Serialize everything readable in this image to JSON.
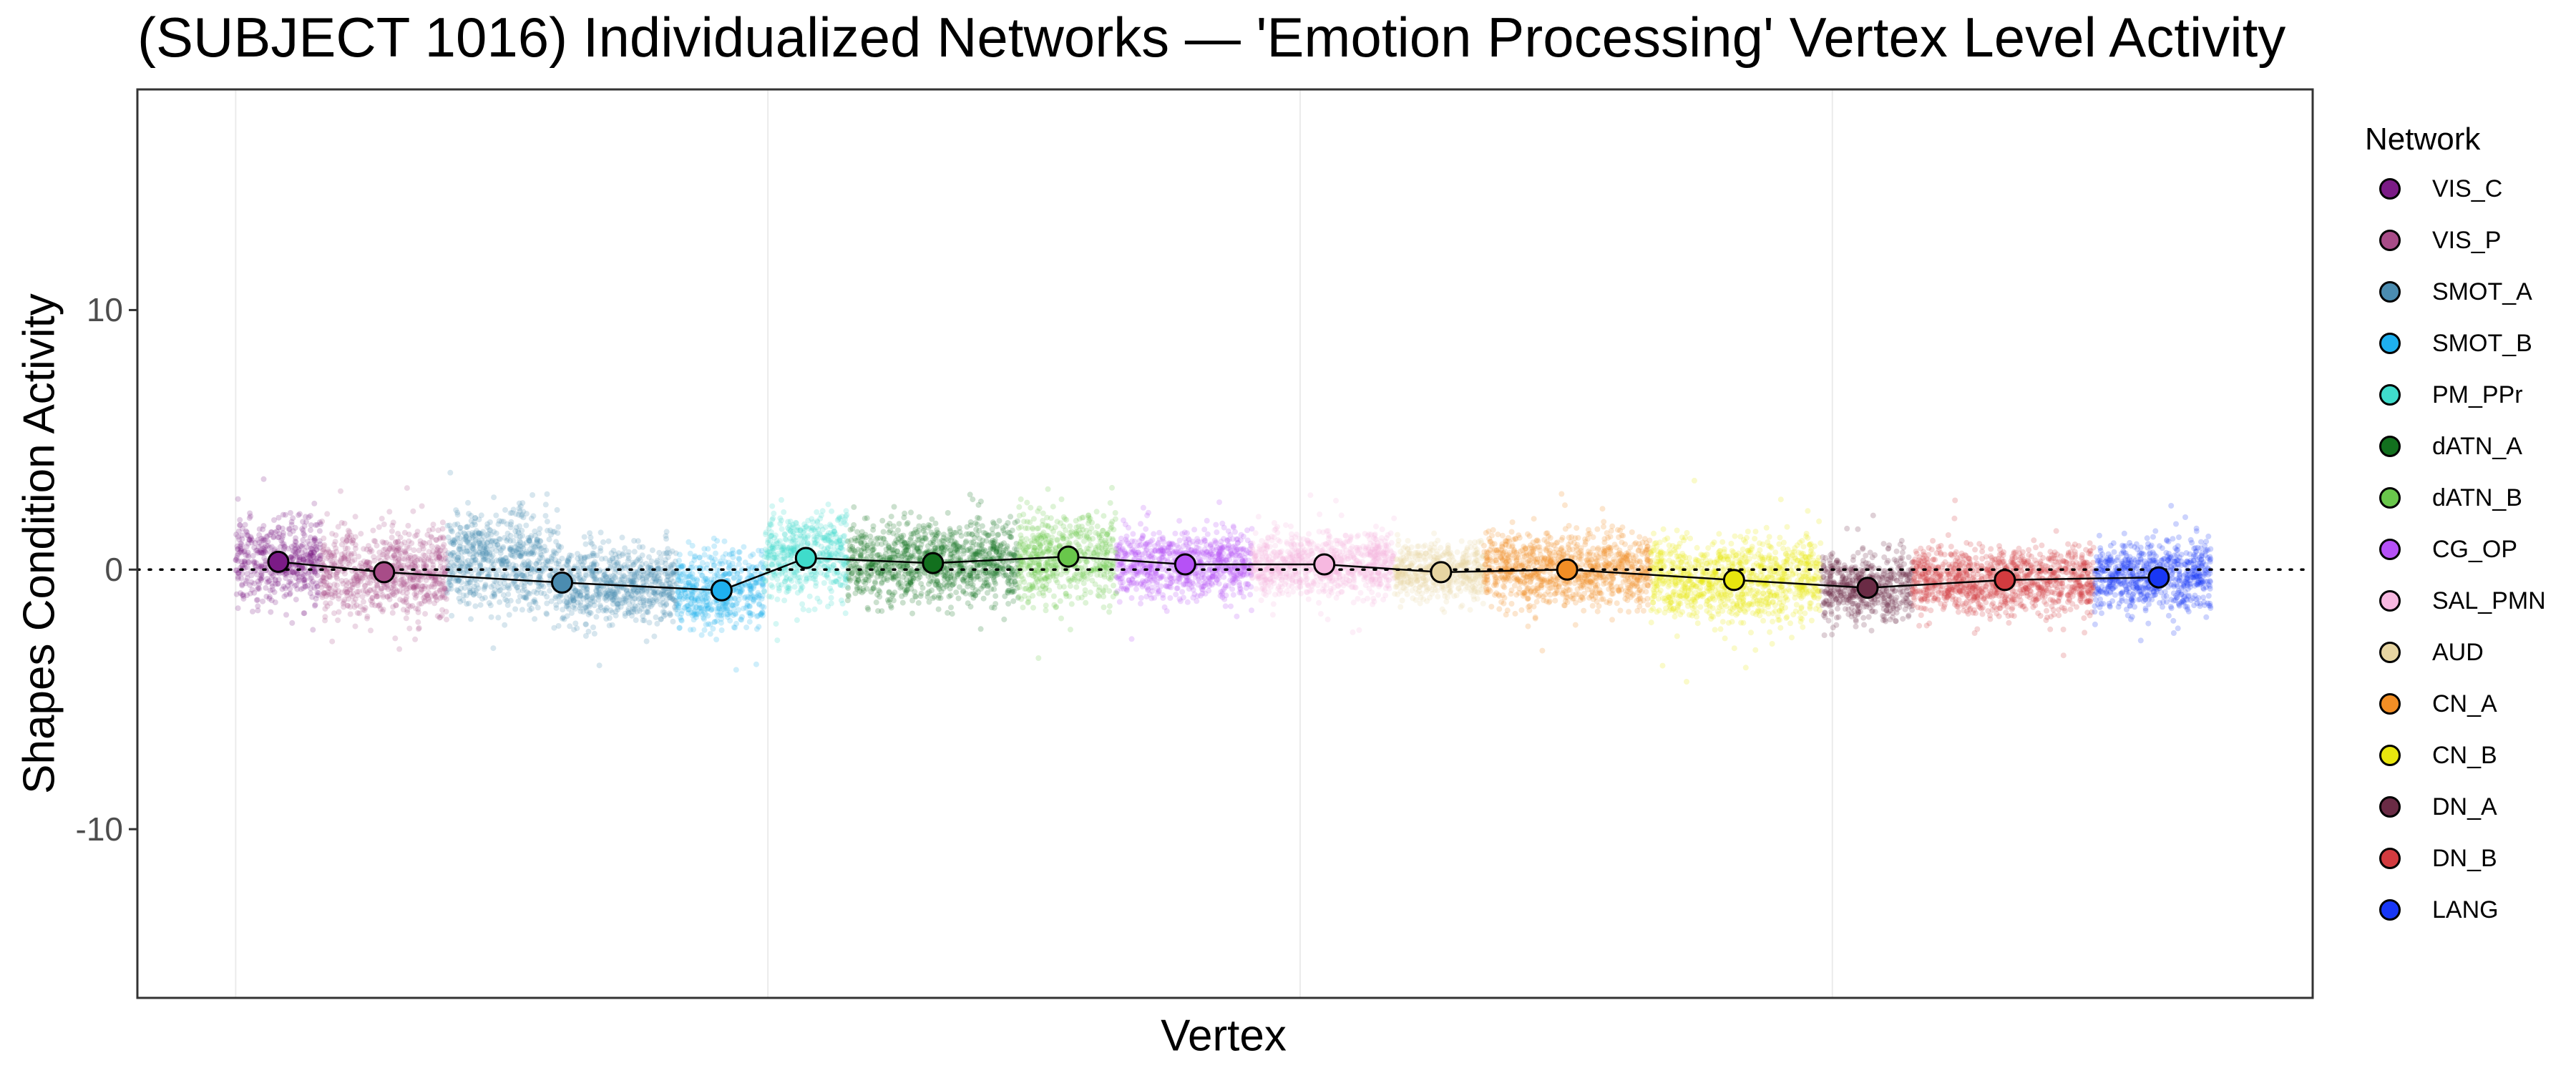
{
  "chart_data": {
    "type": "scatter",
    "title": "(SUBJECT 1016) Individualized Networks — 'Emotion Processing' Vertex Level Activity",
    "xlabel": "Vertex",
    "ylabel": "Shapes Condition Activity",
    "ylim": [
      -16.5,
      18.5
    ],
    "yticks": [
      10,
      0,
      -10
    ],
    "ytick_labels": [
      "10",
      "0",
      "-10"
    ],
    "grid": true,
    "hline": 0,
    "legend": {
      "title": "Network",
      "placement": "right"
    },
    "series": [
      {
        "name": "VIS_C",
        "color": "#7b1b86",
        "x_range": [
          0,
          4600
        ],
        "blocks": [
          [
            0,
            4600,
            0.3,
            2.5
          ]
        ],
        "mean_x": 2300,
        "mean_y": 0.3
      },
      {
        "name": "VIS_P",
        "color": "#a84c88",
        "x_range": [
          4600,
          11400
        ],
        "blocks": [
          [
            4600,
            11400,
            -0.1,
            2.6
          ]
        ],
        "mean_x": 8000,
        "mean_y": -0.1
      },
      {
        "name": "SMOT_A",
        "color": "#4b8cb0",
        "x_range": [
          11400,
          23800
        ],
        "blocks": [
          [
            11400,
            17400,
            0.4,
            2.8
          ],
          [
            17400,
            23800,
            -0.6,
            2.3
          ]
        ],
        "mean_x": 17600,
        "mean_y": -0.5
      },
      {
        "name": "SMOT_B",
        "color": "#1eb0ef",
        "x_range": [
          23800,
          28500
        ],
        "blocks": [
          [
            23800,
            28500,
            -0.8,
            2.3
          ]
        ],
        "mean_x": 26200,
        "mean_y": -0.8
      },
      {
        "name": "PM_PPr",
        "color": "#3fdccb",
        "x_range": [
          28500,
          33000
        ],
        "blocks": [
          [
            28500,
            33000,
            0.5,
            2.5
          ]
        ],
        "mean_x": 30750,
        "mean_y": 0.45
      },
      {
        "name": "dATN_A",
        "color": "#12701e",
        "x_range": [
          33000,
          42200
        ],
        "blocks": [
          [
            33000,
            42200,
            0.25,
            2.4
          ]
        ],
        "mean_x": 37600,
        "mean_y": 0.25
      },
      {
        "name": "dATN_B",
        "color": "#69c74b",
        "x_range": [
          42200,
          47500
        ],
        "blocks": [
          [
            42200,
            47500,
            0.5,
            2.5
          ]
        ],
        "mean_x": 44900,
        "mean_y": 0.5
      },
      {
        "name": "CG_OP",
        "color": "#b651f6",
        "x_range": [
          47500,
          54800
        ],
        "blocks": [
          [
            47500,
            54800,
            0.2,
            2.0
          ]
        ],
        "mean_x": 51200,
        "mean_y": 0.2
      },
      {
        "name": "SAL_PMN",
        "color": "#f6b8e0",
        "x_range": [
          54800,
          62500
        ],
        "blocks": [
          [
            54800,
            62500,
            0.2,
            1.9
          ]
        ],
        "mean_x": 58700,
        "mean_y": 0.2
      },
      {
        "name": "AUD",
        "color": "#e7d5a2",
        "x_range": [
          62500,
          67300
        ],
        "blocks": [
          [
            62500,
            67300,
            -0.1,
            1.6
          ]
        ],
        "mean_x": 65000,
        "mean_y": -0.1
      },
      {
        "name": "CN_A",
        "color": "#f28e25",
        "x_range": [
          67300,
          76300
        ],
        "blocks": [
          [
            67300,
            76300,
            0.0,
            2.2
          ]
        ],
        "mean_x": 71800,
        "mean_y": 0.0
      },
      {
        "name": "CN_B",
        "color": "#e8e60e",
        "x_range": [
          76300,
          85500
        ],
        "blocks": [
          [
            76300,
            85500,
            -0.4,
            2.4
          ]
        ],
        "mean_x": 80800,
        "mean_y": -0.4
      },
      {
        "name": "DN_A",
        "color": "#6a2b45",
        "x_range": [
          85500,
          90400
        ],
        "blocks": [
          [
            85500,
            90400,
            -0.7,
            2.0
          ]
        ],
        "mean_x": 88000,
        "mean_y": -0.7
      },
      {
        "name": "DN_B",
        "color": "#d23b3f",
        "x_range": [
          90400,
          100200
        ],
        "blocks": [
          [
            90400,
            100200,
            -0.4,
            2.0
          ]
        ],
        "mean_x": 95400,
        "mean_y": -0.4
      },
      {
        "name": "LANG",
        "color": "#1837f5",
        "x_range": [
          100200,
          106500
        ],
        "blocks": [
          [
            100200,
            106500,
            -0.3,
            2.0
          ]
        ],
        "mean_x": 103700,
        "mean_y": -0.3
      }
    ],
    "xlim": [
      -5300,
      112000
    ],
    "x_gridlines": [
      0,
      28700,
      57400,
      86100
    ]
  }
}
